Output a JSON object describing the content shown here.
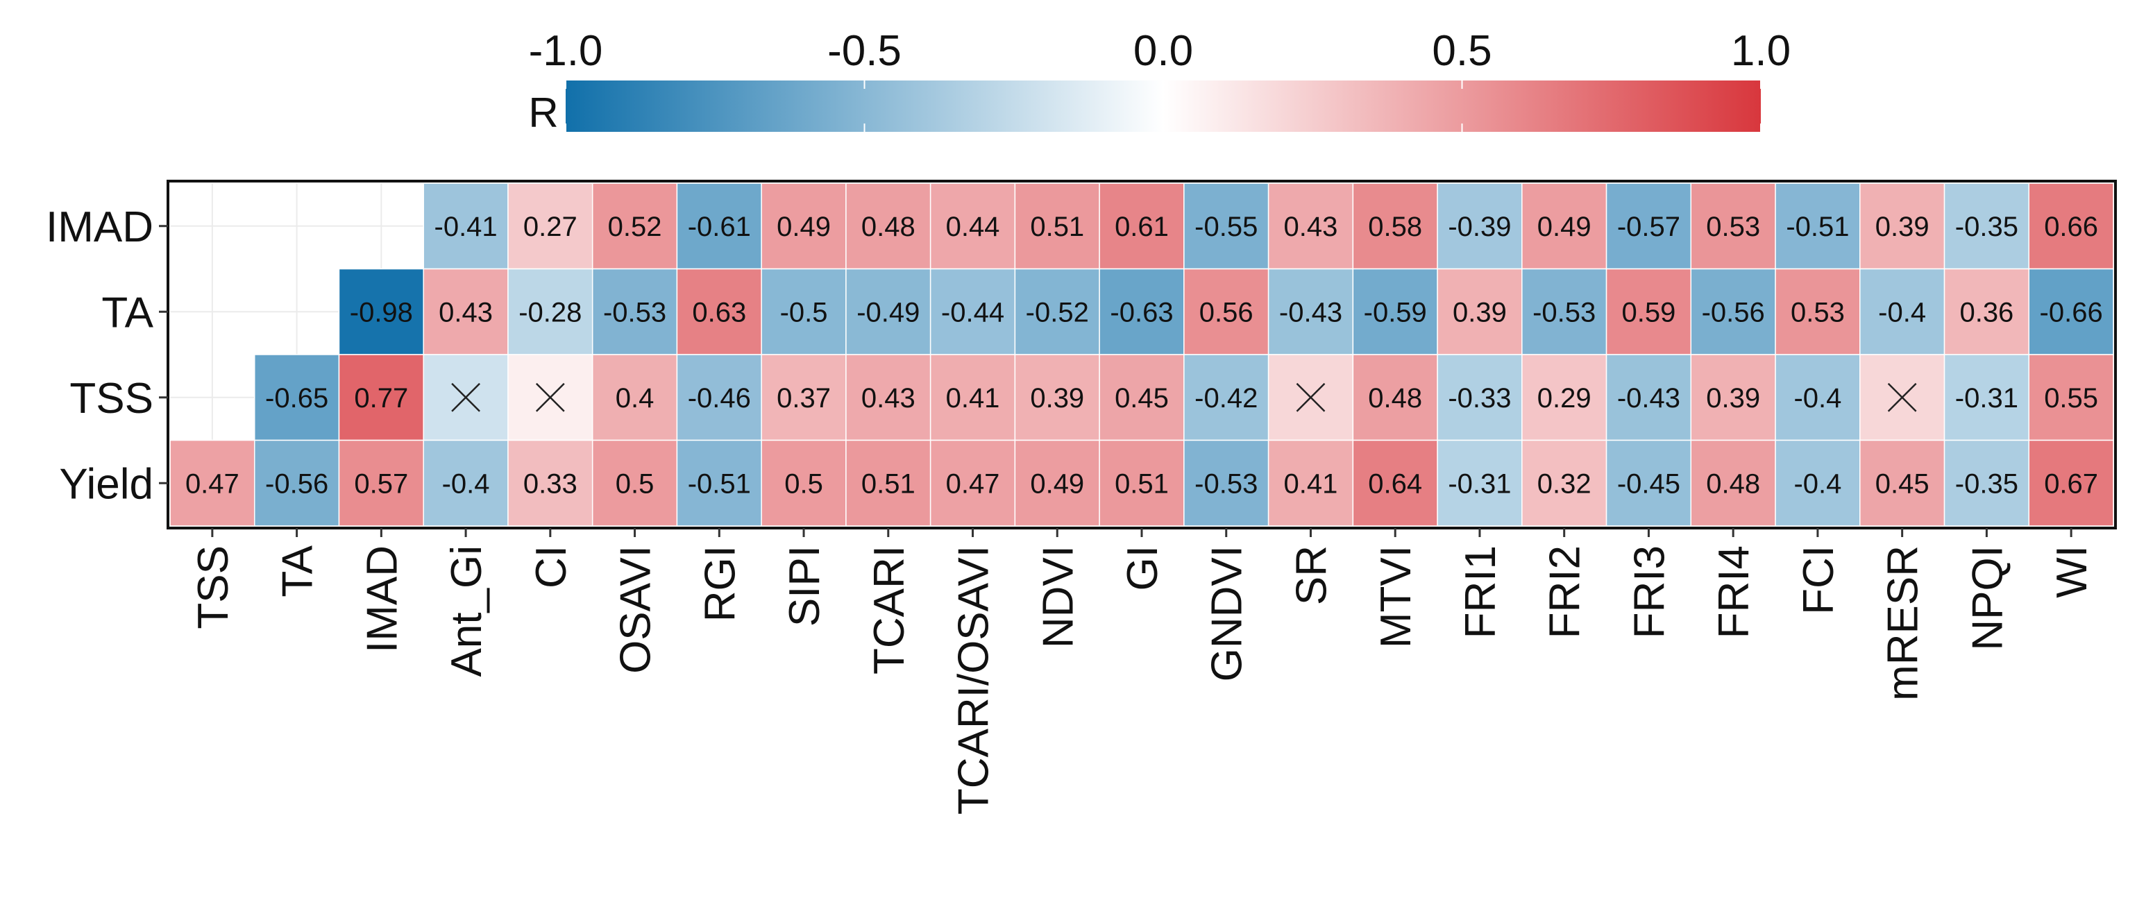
{
  "chart_data": {
    "type": "heatmap",
    "title": "",
    "legend": {
      "title": "R",
      "position": "top",
      "range": [
        -1.0,
        1.0
      ],
      "tick_labels": [
        "-1.0",
        "-0.5",
        "0.0",
        "0.5",
        "1.0"
      ],
      "tick_values": [
        -1.0,
        -0.5,
        0.0,
        0.5,
        1.0
      ],
      "low_color": "#1170AA",
      "mid_color": "#FFFFFF",
      "high_color": "#D8373D"
    },
    "x_categories": [
      "TSS",
      "TA",
      "IMAD",
      "Ant_Gi",
      "CI",
      "OSAVI",
      "RGI",
      "SIPI",
      "TCARI",
      "TCARI/OSAVI",
      "NDVI",
      "GI",
      "GNDVI",
      "SR",
      "MTVI",
      "FRI1",
      "FRI2",
      "FRI3",
      "FRI4",
      "FCI",
      "mRESR",
      "NPQI",
      "WI"
    ],
    "y_categories": [
      "IMAD",
      "TA",
      "TSS",
      "Yield"
    ],
    "non_significant_marker": "X",
    "rows": [
      {
        "name": "IMAD",
        "values": [
          null,
          null,
          null,
          -0.41,
          0.27,
          0.52,
          -0.61,
          0.49,
          0.48,
          0.44,
          0.51,
          0.61,
          -0.55,
          0.43,
          0.58,
          -0.39,
          0.49,
          -0.57,
          0.53,
          -0.51,
          0.39,
          -0.35,
          0.66
        ],
        "labels": [
          "",
          "",
          "",
          "-0.41",
          "0.27",
          "0.52",
          "-0.61",
          "0.49",
          "0.48",
          "0.44",
          "0.51",
          "0.61",
          "-0.55",
          "0.43",
          "0.58",
          "-0.39",
          "0.49",
          "-0.57",
          "0.53",
          "-0.51",
          "0.39",
          "-0.35",
          "0.66"
        ]
      },
      {
        "name": "TA",
        "values": [
          null,
          null,
          -0.98,
          0.43,
          -0.28,
          -0.53,
          0.63,
          -0.5,
          -0.49,
          -0.44,
          -0.52,
          -0.63,
          0.56,
          -0.43,
          -0.59,
          0.39,
          -0.53,
          0.59,
          -0.56,
          0.53,
          -0.4,
          0.36,
          -0.66
        ],
        "labels": [
          "",
          "",
          "-0.98",
          "0.43",
          "-0.28",
          "-0.53",
          "0.63",
          "-0.5",
          "-0.49",
          "-0.44",
          "-0.52",
          "-0.63",
          "0.56",
          "-0.43",
          "-0.59",
          "0.39",
          "-0.53",
          "0.59",
          "-0.56",
          "0.53",
          "-0.4",
          "0.36",
          "-0.66"
        ]
      },
      {
        "name": "TSS",
        "values": [
          null,
          -0.65,
          0.77,
          -0.2,
          0.08,
          0.4,
          -0.46,
          0.37,
          0.43,
          0.41,
          0.39,
          0.45,
          -0.42,
          0.2,
          0.48,
          -0.33,
          0.29,
          -0.43,
          0.39,
          -0.4,
          0.2,
          -0.31,
          0.55
        ],
        "labels": [
          "",
          "-0.65",
          "0.77",
          "X",
          "X",
          "0.4",
          "-0.46",
          "0.37",
          "0.43",
          "0.41",
          "0.39",
          "0.45",
          "-0.42",
          "X",
          "0.48",
          "-0.33",
          "0.29",
          "-0.43",
          "0.39",
          "-0.4",
          "X",
          "-0.31",
          "0.55"
        ]
      },
      {
        "name": "Yield",
        "values": [
          0.47,
          -0.56,
          0.57,
          -0.4,
          0.33,
          0.5,
          -0.51,
          0.5,
          0.51,
          0.47,
          0.49,
          0.51,
          -0.53,
          0.41,
          0.64,
          -0.31,
          0.32,
          -0.45,
          0.48,
          -0.4,
          0.45,
          -0.35,
          0.67
        ],
        "labels": [
          "0.47",
          "-0.56",
          "0.57",
          "-0.4",
          "0.33",
          "0.5",
          "-0.51",
          "0.5",
          "0.51",
          "0.47",
          "0.49",
          "0.51",
          "-0.53",
          "0.41",
          "0.64",
          "-0.31",
          "0.32",
          "-0.45",
          "0.48",
          "-0.4",
          "0.45",
          "-0.35",
          "0.67"
        ]
      }
    ]
  }
}
